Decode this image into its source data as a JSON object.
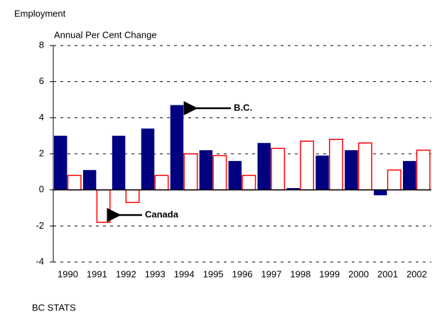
{
  "chart_data": {
    "type": "bar",
    "title": "Employment",
    "y_label": "Annual Per Cent Change",
    "source": "BC STATS",
    "categories": [
      "1990",
      "1991",
      "1992",
      "1993",
      "1994",
      "1995",
      "1996",
      "1997",
      "1998",
      "1999",
      "2000",
      "2001",
      "2002"
    ],
    "series": [
      {
        "name": "B.C.",
        "color": "#000080",
        "values": [
          3.0,
          1.1,
          3.0,
          3.4,
          4.7,
          2.2,
          1.6,
          2.6,
          0.1,
          1.9,
          2.2,
          -0.3,
          1.6
        ]
      },
      {
        "name": "Canada",
        "color": "#ff0000",
        "values": [
          0.8,
          -1.8,
          -0.7,
          0.8,
          2.0,
          1.9,
          0.8,
          2.3,
          2.7,
          2.8,
          2.6,
          1.1,
          2.2
        ]
      }
    ],
    "ylim": [
      -4,
      8
    ],
    "yticks": [
      -4,
      -2,
      0,
      2,
      4,
      6,
      8
    ],
    "grid": true
  }
}
